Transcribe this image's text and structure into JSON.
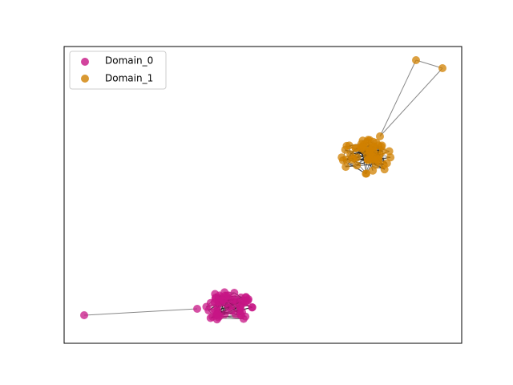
{
  "legend": {
    "items": [
      {
        "label": "Domain_0",
        "color": "#c71585"
      },
      {
        "label": "Domain_1",
        "color": "#d08000"
      }
    ]
  }
}
